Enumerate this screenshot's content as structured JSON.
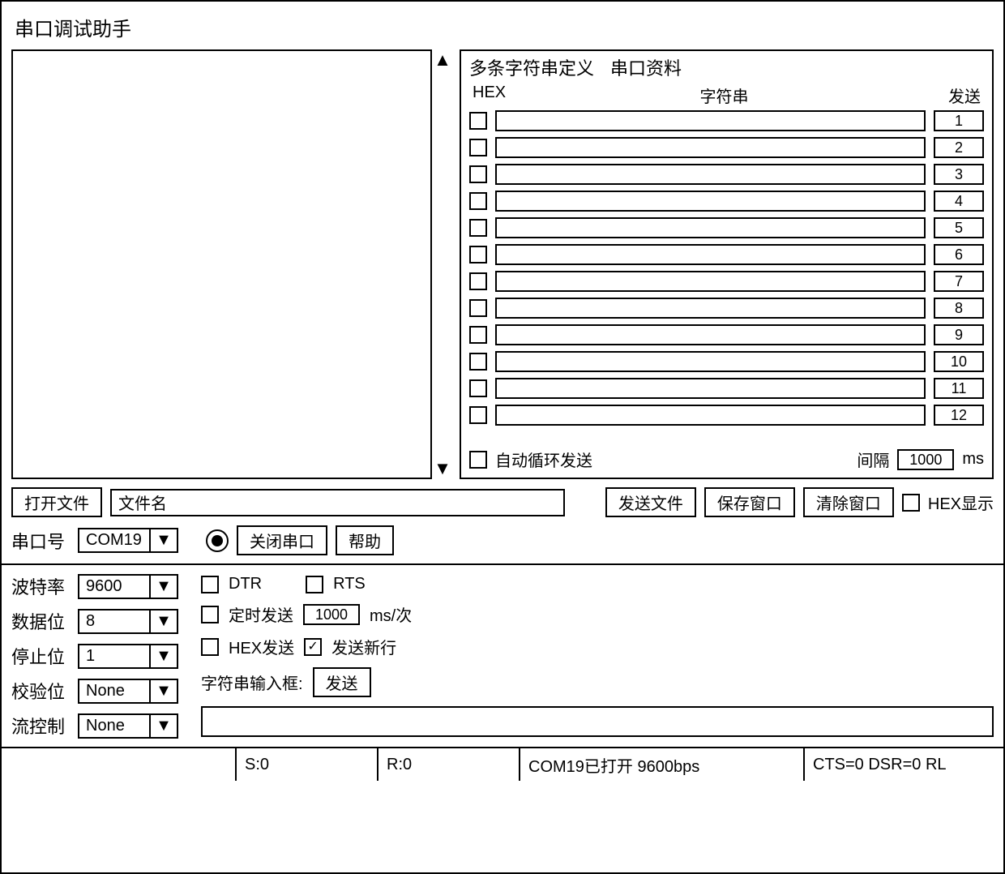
{
  "window": {
    "title": "串口调试助手"
  },
  "right_panel": {
    "tab1": "多条字符串定义",
    "tab2": "串口资料",
    "col_hex": "HEX",
    "col_str": "字符串",
    "col_send": "发送",
    "rows": [
      {
        "btn": "1"
      },
      {
        "btn": "2"
      },
      {
        "btn": "3"
      },
      {
        "btn": "4"
      },
      {
        "btn": "5"
      },
      {
        "btn": "6"
      },
      {
        "btn": "7"
      },
      {
        "btn": "8"
      },
      {
        "btn": "9"
      },
      {
        "btn": "10"
      },
      {
        "btn": "11"
      },
      {
        "btn": "12"
      }
    ],
    "auto_loop": "自动循环发送",
    "interval_label": "间隔",
    "interval_value": "1000",
    "interval_unit": "ms"
  },
  "mid": {
    "open_file": "打开文件",
    "filename_placeholder": "文件名",
    "send_file": "发送文件",
    "save_window": "保存窗口",
    "clear_window": "清除窗口",
    "hex_show": "HEX显示"
  },
  "port_row": {
    "port_label": "串口号",
    "port_value": "COM19",
    "close_port": "关闭串口",
    "help": "帮助"
  },
  "settings": {
    "baud_label": "波特率",
    "baud_value": "9600",
    "data_label": "数据位",
    "data_value": "8",
    "stop_label": "停止位",
    "stop_value": "1",
    "parity_label": "校验位",
    "parity_value": "None",
    "flow_label": "流控制",
    "flow_value": "None",
    "dtr": "DTR",
    "rts": "RTS",
    "timed_send": "定时发送",
    "timed_value": "1000",
    "timed_unit": "ms/次",
    "hex_send": "HEX发送",
    "send_newline": "发送新行",
    "input_label": "字符串输入框:",
    "send_btn": "发送"
  },
  "status": {
    "s": "S:0",
    "r": "R:0",
    "port": "COM19已打开 9600bps",
    "sig": "CTS=0 DSR=0 RL"
  }
}
